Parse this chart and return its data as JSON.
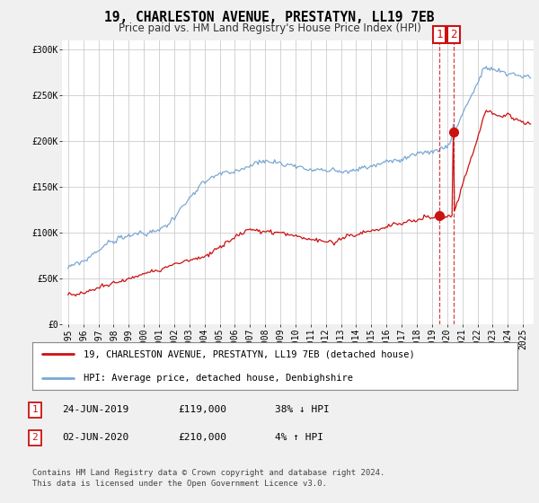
{
  "title": "19, CHARLESTON AVENUE, PRESTATYN, LL19 7EB",
  "subtitle": "Price paid vs. HM Land Registry's House Price Index (HPI)",
  "legend_line1": "19, CHARLESTON AVENUE, PRESTATYN, LL19 7EB (detached house)",
  "legend_line2": "HPI: Average price, detached house, Denbighshire",
  "table_rows": [
    {
      "num": "1",
      "date": "24-JUN-2019",
      "price": "£119,000",
      "change": "38% ↓ HPI"
    },
    {
      "num": "2",
      "date": "02-JUN-2020",
      "price": "£210,000",
      "change": "4% ↑ HPI"
    }
  ],
  "footnote": "Contains HM Land Registry data © Crown copyright and database right 2024.\nThis data is licensed under the Open Government Licence v3.0.",
  "hpi_color": "#7aa8d4",
  "price_color": "#cc1111",
  "marker1_year": 2019.48,
  "marker2_year": 2020.42,
  "marker1_hpi": 119000,
  "marker2_price": 210000,
  "ylim": [
    0,
    310000
  ],
  "yticks": [
    0,
    50000,
    100000,
    150000,
    200000,
    250000,
    300000
  ],
  "ytick_labels": [
    "£0",
    "£50K",
    "£100K",
    "£150K",
    "£200K",
    "£250K",
    "£300K"
  ],
  "background_color": "#f0f0f0",
  "plot_bg_color": "#ffffff",
  "seed": 12345
}
